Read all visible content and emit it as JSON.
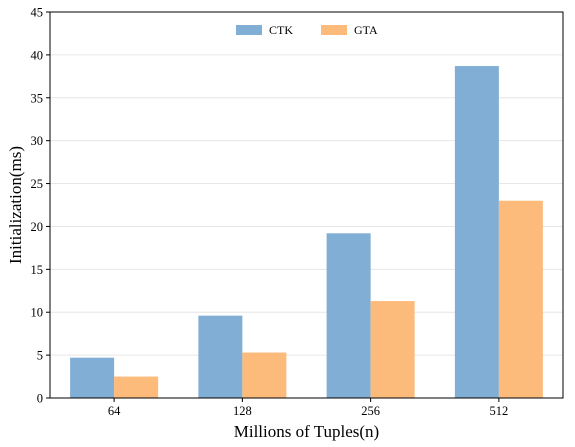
{
  "chart_data": {
    "type": "bar",
    "categories": [
      "64",
      "128",
      "256",
      "512"
    ],
    "series": [
      {
        "name": "CTK",
        "values": [
          4.7,
          9.6,
          19.2,
          38.7
        ],
        "color": "#80aed5"
      },
      {
        "name": "GTA",
        "values": [
          2.5,
          5.3,
          11.3,
          23.0
        ],
        "color": "#fdbb7b"
      }
    ],
    "title": "",
    "xlabel": "Millions of Tuples(n)",
    "ylabel": "Initialization(ms)",
    "ylim": [
      0,
      45
    ],
    "yticks": [
      0,
      5,
      10,
      15,
      20,
      25,
      30,
      35,
      40,
      45
    ],
    "grid": "horizontal",
    "legend_position": "top-center"
  }
}
